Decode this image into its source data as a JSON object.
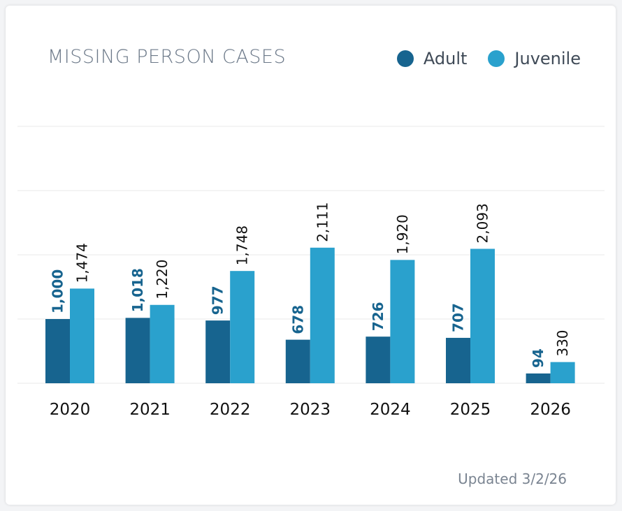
{
  "chart_data": {
    "type": "bar",
    "title": "MISSING PERSON CASES",
    "categories": [
      "2020",
      "2021",
      "2022",
      "2023",
      "2024",
      "2025",
      "2026"
    ],
    "series": [
      {
        "name": "Adult",
        "color": "#17648f",
        "values": [
          1000,
          1018,
          977,
          678,
          726,
          707,
          94
        ],
        "labels": [
          "1,000",
          "1,018",
          "977",
          "678",
          "726",
          "707",
          "94"
        ]
      },
      {
        "name": "Juvenile",
        "color": "#2aa1cd",
        "values": [
          1474,
          1220,
          1748,
          2111,
          1920,
          2093,
          330
        ],
        "labels": [
          "1,474",
          "1,220",
          "1,748",
          "2,111",
          "1,920",
          "2,093",
          "330"
        ]
      }
    ],
    "ylim": [
      0,
      4000
    ],
    "grid": true,
    "legend": "top-right",
    "footnote": "Updated 3/2/26"
  }
}
